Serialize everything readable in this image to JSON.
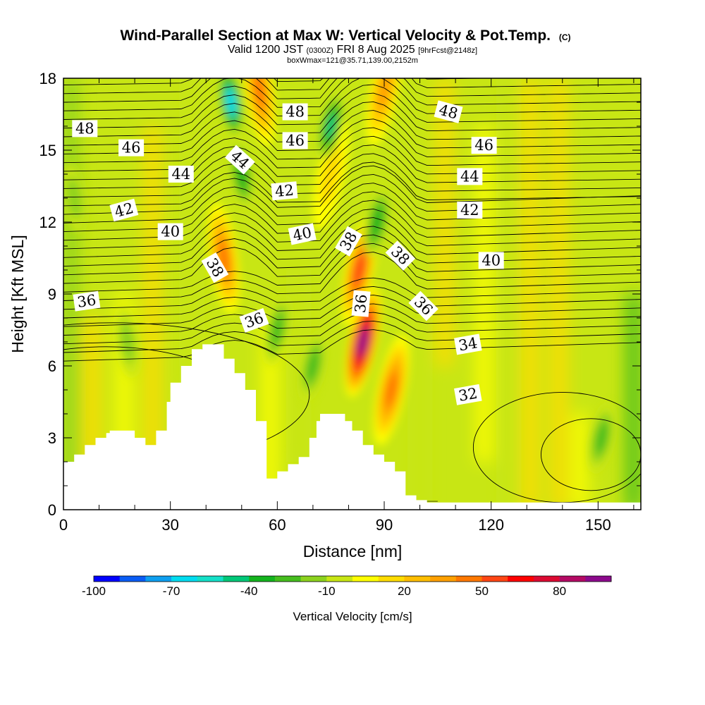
{
  "chart_data": {
    "type": "heatmap",
    "title": "Wind-Parallel Section at Max W: Vertical Velocity & Pot.Temp.",
    "title_mark": "(C)",
    "subtitle": {
      "valid": "Valid 1200 JST",
      "utc": "(0300Z)",
      "date": "FRI 8 Aug 2025",
      "forecast": "[9hrFcst@2148z]",
      "box": "boxWmax=121@35.71,139.00,2152m"
    },
    "xlabel": "Distance [nm]",
    "ylabel": "Height [Kft MSL]",
    "xlim": [
      0,
      162
    ],
    "ylim": [
      0,
      18
    ],
    "xticks": [
      0,
      30,
      60,
      90,
      120,
      150
    ],
    "yticks": [
      0,
      3,
      6,
      9,
      12,
      15,
      18
    ],
    "colorbar": {
      "label": "Vertical Velocity [cm/s]",
      "tick_labels": [
        "-100",
        "-70",
        "-40",
        "-10",
        "20",
        "50",
        "80"
      ],
      "tick_values": [
        -100,
        -70,
        -40,
        -10,
        20,
        50,
        80
      ],
      "levels": [
        -100,
        -90,
        -80,
        -70,
        -60,
        -50,
        -40,
        -30,
        -20,
        -10,
        0,
        10,
        20,
        30,
        40,
        50,
        60,
        70,
        80,
        90,
        100
      ],
      "colors": [
        "#0000ff",
        "#0a5cf5",
        "#0e9ff0",
        "#00dcf0",
        "#14e0c8",
        "#00c878",
        "#14b41e",
        "#46be1e",
        "#8cd21e",
        "#c8e614",
        "#ffff00",
        "#ffdc00",
        "#ffbe00",
        "#ffa000",
        "#ff7800",
        "#ff4614",
        "#ff0000",
        "#dc0a32",
        "#b40a64",
        "#8c0a8c"
      ]
    },
    "velocity_features": [
      {
        "kind": "updraft",
        "x": 84,
        "y": 7,
        "w": 95
      },
      {
        "kind": "updraft",
        "x": 83,
        "y": 10,
        "w": 60
      },
      {
        "kind": "updraft",
        "x": 92,
        "y": 5,
        "w": 45
      },
      {
        "kind": "updraft",
        "x": 45,
        "y": 10.5,
        "w": 45
      },
      {
        "kind": "updraft",
        "x": 55,
        "y": 17.5,
        "w": 45
      },
      {
        "kind": "updraft",
        "x": 90,
        "y": 17.5,
        "w": 40
      },
      {
        "kind": "updraft",
        "x": 75,
        "y": 14,
        "w": 20
      },
      {
        "kind": "downdraft",
        "x": 47,
        "y": 17,
        "w": -70
      },
      {
        "kind": "downdraft",
        "x": 50,
        "y": 14,
        "w": -40
      },
      {
        "kind": "downdraft",
        "x": 75,
        "y": 16,
        "w": -45
      },
      {
        "kind": "downdraft",
        "x": 88,
        "y": 12,
        "w": -35
      },
      {
        "kind": "downdraft",
        "x": 60,
        "y": 7.5,
        "w": -30
      },
      {
        "kind": "downdraft",
        "x": 70,
        "y": 6,
        "w": -25
      },
      {
        "kind": "downdraft",
        "x": 151,
        "y": 3,
        "w": -30
      },
      {
        "kind": "downdraft",
        "x": 3,
        "y": 13,
        "w": -15
      },
      {
        "kind": "downdraft",
        "x": 18,
        "y": 7,
        "w": -15
      }
    ],
    "theta_contours": {
      "levels": [
        32,
        34,
        36,
        38,
        40,
        42,
        44,
        46,
        48
      ],
      "labels": [
        {
          "text": "48",
          "x": 6,
          "y": 15.9,
          "angle": 0
        },
        {
          "text": "46",
          "x": 19,
          "y": 15.1,
          "angle": 0
        },
        {
          "text": "44",
          "x": 33,
          "y": 14.0,
          "angle": 0
        },
        {
          "text": "42",
          "x": 17,
          "y": 12.5,
          "angle": -15
        },
        {
          "text": "40",
          "x": 30,
          "y": 11.6,
          "angle": 0
        },
        {
          "text": "38",
          "x": 42.5,
          "y": 10.1,
          "angle": 60
        },
        {
          "text": "36",
          "x": 6.5,
          "y": 8.7,
          "angle": -8
        },
        {
          "text": "36",
          "x": 53.5,
          "y": 7.9,
          "angle": -20
        },
        {
          "text": "44",
          "x": 49.5,
          "y": 14.6,
          "angle": 42
        },
        {
          "text": "48",
          "x": 65,
          "y": 16.6,
          "angle": 0
        },
        {
          "text": "46",
          "x": 65,
          "y": 15.4,
          "angle": 0
        },
        {
          "text": "42",
          "x": 62,
          "y": 13.3,
          "angle": -5
        },
        {
          "text": "40",
          "x": 67,
          "y": 11.5,
          "angle": -12
        },
        {
          "text": "38",
          "x": 80,
          "y": 11.2,
          "angle": -60
        },
        {
          "text": "36",
          "x": 83.5,
          "y": 8.6,
          "angle": -85
        },
        {
          "text": "38",
          "x": 94.5,
          "y": 10.6,
          "angle": 45
        },
        {
          "text": "36",
          "x": 101,
          "y": 8.5,
          "angle": 45
        },
        {
          "text": "48",
          "x": 108,
          "y": 16.6,
          "angle": 15
        },
        {
          "text": "46",
          "x": 118,
          "y": 15.2,
          "angle": 0
        },
        {
          "text": "44",
          "x": 114,
          "y": 13.9,
          "angle": 0
        },
        {
          "text": "42",
          "x": 114,
          "y": 12.5,
          "angle": 0
        },
        {
          "text": "40",
          "x": 120,
          "y": 10.4,
          "angle": 0
        },
        {
          "text": "34",
          "x": 113.5,
          "y": 6.9,
          "angle": -10
        },
        {
          "text": "32",
          "x": 113.5,
          "y": 4.8,
          "angle": -10
        }
      ]
    },
    "terrain": {
      "x": [
        0,
        3,
        3,
        6,
        6,
        9,
        9,
        12,
        12,
        13,
        13,
        20,
        20,
        23,
        23,
        26,
        26,
        29,
        29,
        30,
        30,
        33,
        33,
        36,
        36,
        39,
        39,
        42,
        42,
        45,
        45,
        48,
        48,
        51,
        51,
        54,
        54,
        57,
        57,
        60,
        60,
        63,
        63,
        66,
        66,
        69,
        69,
        71,
        71,
        72,
        72,
        79,
        79,
        81,
        81,
        84,
        84,
        87,
        87,
        90,
        90,
        93,
        93,
        96,
        96,
        99,
        99,
        102,
        102,
        105,
        105,
        162
      ],
      "y": [
        2.0,
        2.0,
        2.3,
        2.3,
        2.7,
        2.7,
        3.0,
        3.0,
        3.2,
        3.2,
        3.3,
        3.3,
        3.0,
        3.0,
        2.7,
        2.7,
        3.3,
        3.3,
        4.5,
        4.5,
        5.3,
        5.3,
        6.0,
        6.0,
        6.7,
        6.7,
        6.9,
        6.9,
        6.9,
        6.9,
        6.3,
        6.3,
        5.7,
        5.7,
        5.0,
        5.0,
        3.7,
        3.7,
        1.3,
        1.3,
        1.6,
        1.6,
        1.9,
        1.9,
        2.2,
        2.2,
        3.0,
        3.0,
        3.7,
        3.7,
        4.0,
        4.0,
        3.7,
        3.7,
        3.3,
        3.3,
        2.7,
        2.7,
        2.3,
        2.3,
        2.0,
        2.0,
        1.6,
        1.6,
        0.6,
        0.6,
        0.4,
        0.4,
        0.3,
        0.3,
        0.3,
        0.3
      ]
    }
  }
}
